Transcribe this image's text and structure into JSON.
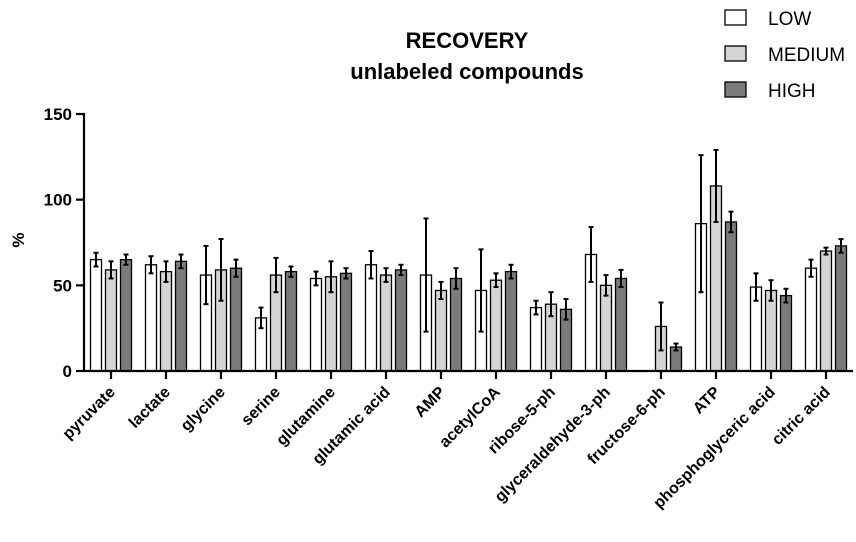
{
  "chart_data": {
    "type": "bar",
    "title": "RECOVERY",
    "subtitle": "unlabeled compounds",
    "xlabel": "",
    "ylabel": "%",
    "ylim": [
      0,
      150
    ],
    "yticks": [
      0,
      50,
      100,
      150
    ],
    "legend_position": "top-right",
    "grid": false,
    "categories": [
      "pyruvate",
      "lactate",
      "glycine",
      "serine",
      "glutamine",
      "glutamic acid",
      "AMP",
      "acetylCoA",
      "ribose-5-ph",
      "glyceraldehyde-3-ph",
      "fructose-6-ph",
      "ATP",
      "phosphoglyceric acid",
      "citric acid"
    ],
    "series": [
      {
        "name": "LOW",
        "color": "#ffffff",
        "values": [
          65,
          62,
          56,
          31,
          54,
          62,
          56,
          47,
          37,
          68,
          null,
          86,
          49,
          60
        ],
        "errors": [
          4,
          5,
          17,
          6,
          4,
          8,
          33,
          24,
          4,
          16,
          null,
          40,
          8,
          5
        ]
      },
      {
        "name": "MEDIUM",
        "color": "#d4d4d4",
        "values": [
          59,
          58,
          59,
          56,
          55,
          56,
          47,
          53,
          39,
          50,
          26,
          108,
          47,
          70
        ],
        "errors": [
          5,
          6,
          18,
          10,
          9,
          4,
          5,
          4,
          7,
          6,
          14,
          21,
          6,
          2
        ]
      },
      {
        "name": "HIGH",
        "color": "#7b7b7b",
        "values": [
          65,
          64,
          60,
          58,
          57,
          59,
          54,
          58,
          36,
          54,
          14,
          87,
          44,
          73
        ],
        "errors": [
          3,
          4,
          5,
          3,
          3,
          3,
          6,
          4,
          6,
          5,
          2,
          6,
          4,
          4
        ]
      }
    ]
  }
}
